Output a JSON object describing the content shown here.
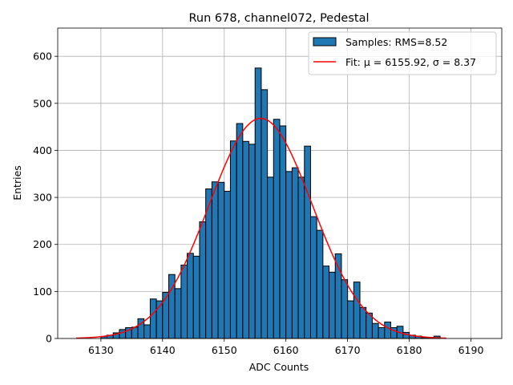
{
  "chart_data": {
    "type": "bar",
    "title": "Run 678, channel072, Pedestal",
    "xlabel": "ADC Counts",
    "ylabel": "Entries",
    "xlim": [
      6123,
      6195
    ],
    "ylim": [
      0,
      660
    ],
    "xticks": [
      6130,
      6140,
      6150,
      6160,
      6170,
      6180,
      6190
    ],
    "yticks": [
      0,
      100,
      200,
      300,
      400,
      500,
      600
    ],
    "grid": true,
    "legend_position": "top-right",
    "series": [
      {
        "name": "Samples: RMS=8.52",
        "kind": "histogram",
        "color": "#1f77b4",
        "edgecolor": "#000000",
        "bin_width": 1,
        "bin_left": [
          6130,
          6131,
          6132,
          6133,
          6134,
          6135,
          6136,
          6137,
          6138,
          6139,
          6140,
          6141,
          6142,
          6143,
          6144,
          6145,
          6146,
          6147,
          6148,
          6149,
          6150,
          6151,
          6152,
          6153,
          6154,
          6155,
          6156,
          6157,
          6158,
          6159,
          6160,
          6161,
          6162,
          6163,
          6164,
          6165,
          6166,
          6167,
          6168,
          6169,
          6170,
          6171,
          6172,
          6173,
          6174,
          6175,
          6176,
          6177,
          6178,
          6179,
          6180,
          6181,
          6182,
          6183,
          6184
        ],
        "values": [
          4,
          7,
          12,
          19,
          23,
          24,
          42,
          29,
          84,
          80,
          98,
          136,
          106,
          156,
          181,
          175,
          248,
          318,
          333,
          332,
          313,
          420,
          457,
          419,
          413,
          575,
          529,
          343,
          466,
          452,
          355,
          363,
          343,
          409,
          259,
          230,
          154,
          141,
          180,
          125,
          80,
          120,
          66,
          54,
          32,
          23,
          35,
          23,
          26,
          13,
          7,
          5,
          2,
          2,
          5
        ]
      },
      {
        "name": "Fit: μ = 6155.92, σ = 8.37",
        "kind": "line",
        "color": "#ff0000",
        "mu": 6155.92,
        "sigma": 8.37,
        "amplitude": 468,
        "x_range": [
          6126,
          6186
        ]
      }
    ],
    "legend": [
      {
        "label": "Samples: RMS=8.52",
        "color": "#1f77b4",
        "marker": "patch"
      },
      {
        "label": "Fit: μ = 6155.92, σ = 8.37",
        "color": "#ff0000",
        "marker": "line"
      }
    ]
  }
}
